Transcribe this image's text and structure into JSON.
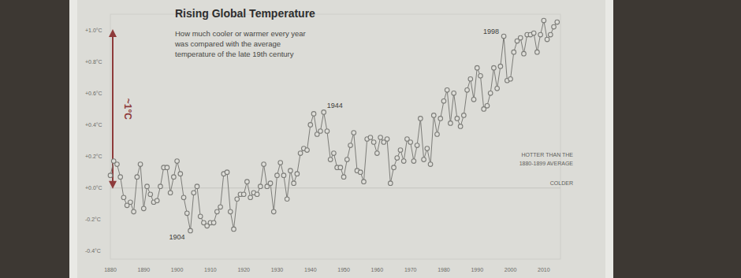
{
  "chart_data": {
    "type": "line",
    "title": "Rising Global Temperature",
    "subtitle": "How much cooler or warmer every year was compared with the average temperature of the late 19th century",
    "x": [
      1880,
      1881,
      1882,
      1883,
      1884,
      1885,
      1886,
      1887,
      1888,
      1889,
      1890,
      1891,
      1892,
      1893,
      1894,
      1895,
      1896,
      1897,
      1898,
      1899,
      1900,
      1901,
      1902,
      1903,
      1904,
      1905,
      1906,
      1907,
      1908,
      1909,
      1910,
      1911,
      1912,
      1913,
      1914,
      1915,
      1916,
      1917,
      1918,
      1919,
      1920,
      1921,
      1922,
      1923,
      1924,
      1925,
      1926,
      1927,
      1928,
      1929,
      1930,
      1931,
      1932,
      1933,
      1934,
      1935,
      1936,
      1937,
      1938,
      1939,
      1940,
      1941,
      1942,
      1943,
      1944,
      1945,
      1946,
      1947,
      1948,
      1949,
      1950,
      1951,
      1952,
      1953,
      1954,
      1955,
      1956,
      1957,
      1958,
      1959,
      1960,
      1961,
      1962,
      1963,
      1964,
      1965,
      1966,
      1967,
      1968,
      1969,
      1970,
      1971,
      1972,
      1973,
      1974,
      1975,
      1976,
      1977,
      1978,
      1979,
      1980,
      1981,
      1982,
      1983,
      1984,
      1985,
      1986,
      1987,
      1988,
      1989,
      1990,
      1991,
      1992,
      1993,
      1994,
      1995,
      1996,
      1997,
      1998,
      1999,
      2000,
      2001,
      2002,
      2003,
      2004,
      2005,
      2006,
      2007,
      2008,
      2009,
      2010,
      2011,
      2012,
      2013,
      2014
    ],
    "values": [
      0.08,
      0.17,
      0.15,
      0.07,
      -0.06,
      -0.11,
      -0.09,
      -0.15,
      0.07,
      0.15,
      -0.13,
      0.01,
      -0.04,
      -0.09,
      -0.08,
      0.01,
      0.13,
      0.13,
      -0.03,
      0.07,
      0.17,
      0.09,
      -0.06,
      -0.16,
      -0.27,
      -0.03,
      0.01,
      -0.18,
      -0.22,
      -0.24,
      -0.22,
      -0.22,
      -0.15,
      -0.12,
      0.09,
      0.1,
      -0.15,
      -0.26,
      -0.07,
      -0.04,
      -0.04,
      0.04,
      -0.06,
      -0.03,
      -0.04,
      0.01,
      0.15,
      0.01,
      0.03,
      -0.15,
      0.08,
      0.16,
      0.08,
      -0.07,
      0.11,
      0.03,
      0.09,
      0.22,
      0.25,
      0.24,
      0.4,
      0.47,
      0.34,
      0.36,
      0.48,
      0.36,
      0.18,
      0.22,
      0.13,
      0.13,
      0.07,
      0.18,
      0.27,
      0.35,
      0.11,
      0.1,
      0.04,
      0.31,
      0.32,
      0.29,
      0.22,
      0.32,
      0.29,
      0.31,
      0.03,
      0.13,
      0.19,
      0.24,
      0.17,
      0.31,
      0.29,
      0.17,
      0.27,
      0.44,
      0.18,
      0.25,
      0.15,
      0.46,
      0.34,
      0.44,
      0.55,
      0.62,
      0.41,
      0.6,
      0.44,
      0.39,
      0.46,
      0.62,
      0.69,
      0.56,
      0.76,
      0.71,
      0.5,
      0.52,
      0.6,
      0.76,
      0.63,
      0.77,
      0.96,
      0.68,
      0.69,
      0.86,
      0.93,
      0.95,
      0.85,
      0.97,
      0.97,
      0.98,
      0.86,
      0.97,
      1.06,
      0.94,
      0.97,
      1.02,
      1.05
    ],
    "color": "#7c7c78",
    "marker": "circle",
    "line_style": "solid",
    "grid": false,
    "xlim": [
      1880,
      2015
    ],
    "xticks": [
      1880,
      1890,
      1900,
      1910,
      1920,
      1930,
      1940,
      1950,
      1960,
      1970,
      1980,
      1990,
      2000,
      2010
    ],
    "ylim": [
      -0.45,
      1.1
    ],
    "yticks": [
      {
        "value": -0.4,
        "label": "-0.4°C"
      },
      {
        "value": -0.2,
        "label": "-0.2°C"
      },
      {
        "value": 0.0,
        "label": "+0.0°C"
      },
      {
        "value": 0.2,
        "label": "+0.2°C"
      },
      {
        "value": 0.4,
        "label": "+0.4°C"
      },
      {
        "value": 0.6,
        "label": "+0.6°C"
      },
      {
        "value": 0.8,
        "label": "+0.8°C"
      },
      {
        "value": 1.0,
        "label": "+1.0°C"
      }
    ],
    "annotations": [
      {
        "label": "1904",
        "x": 1904
      },
      {
        "label": "1944",
        "x": 1944
      },
      {
        "label": "1998",
        "x": 1998
      }
    ],
    "reference_line": {
      "value": 0.0,
      "label_above": "HOTTER THAN THE 1880-1899 AVERAGE",
      "label_below": "COLDER"
    },
    "range_arrow": {
      "label": "~1°C",
      "from": 0.0,
      "to": 1.0,
      "color": "#8e3b3b"
    }
  }
}
